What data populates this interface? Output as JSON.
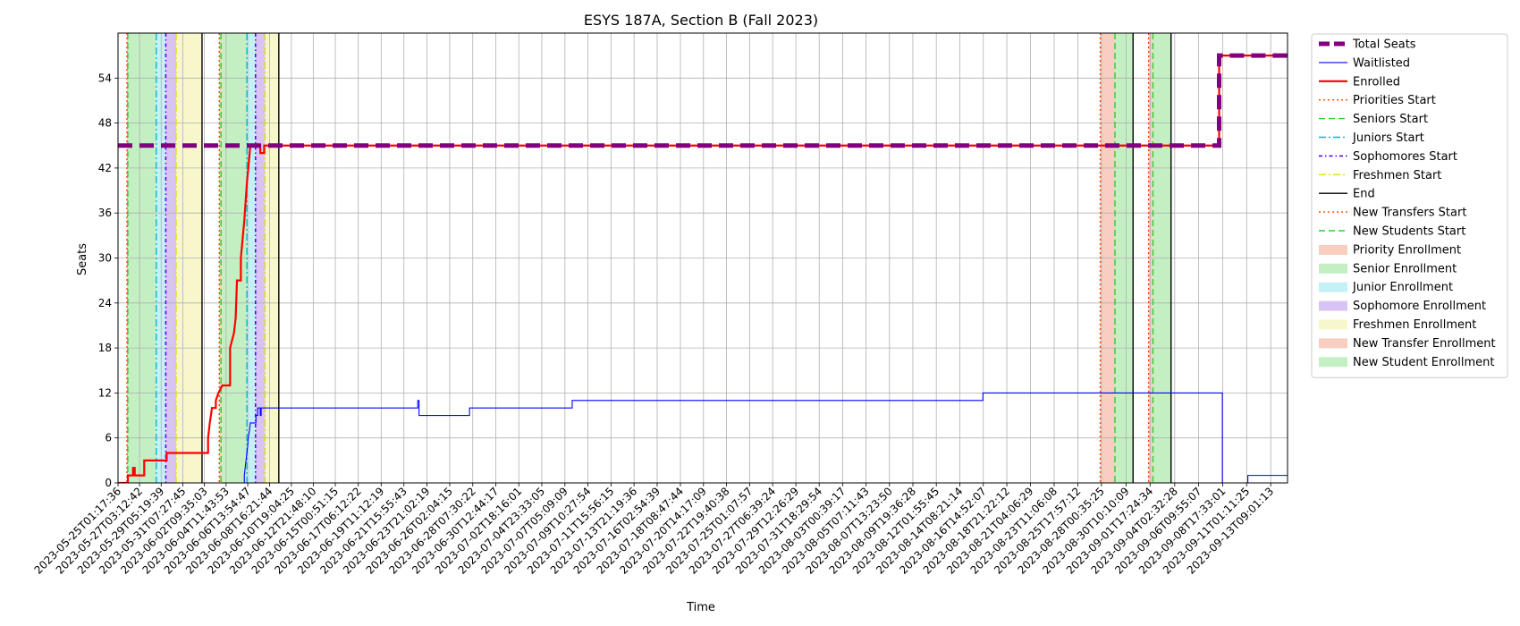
{
  "chart_data": {
    "type": "line",
    "title": "ESYS 187A, Section B (Fall 2023)",
    "xlabel": "Time",
    "ylabel": "Seats",
    "grid": true,
    "legend_position": "outside-right",
    "xlim": [
      "2023-05-25T01:17:36",
      "2023-09-15T00:00:00"
    ],
    "ylim": [
      0,
      60
    ],
    "yticks": [
      0,
      6,
      12,
      18,
      24,
      30,
      36,
      42,
      48,
      54
    ],
    "xticks": [
      "2023-05-25T01:17:36",
      "2023-05-27T03:12:42",
      "2023-05-29T05:19:39",
      "2023-05-31T07:27:45",
      "2023-06-02T09:35:03",
      "2023-06-04T11:43:53",
      "2023-06-06T13:54:47",
      "2023-06-08T16:21:44",
      "2023-06-10T19:04:25",
      "2023-06-12T21:48:10",
      "2023-06-15T00:51:15",
      "2023-06-17T06:12:22",
      "2023-06-19T11:12:19",
      "2023-06-21T15:55:43",
      "2023-06-23T21:02:19",
      "2023-06-26T02:04:15",
      "2023-06-28T07:30:22",
      "2023-06-30T12:44:17",
      "2023-07-02T18:16:01",
      "2023-07-04T23:33:05",
      "2023-07-07T05:09:09",
      "2023-07-09T10:27:54",
      "2023-07-11T15:56:15",
      "2023-07-13T21:19:36",
      "2023-07-16T02:54:39",
      "2023-07-18T08:47:44",
      "2023-07-20T14:17:09",
      "2023-07-22T19:40:38",
      "2023-07-25T01:07:57",
      "2023-07-27T06:39:24",
      "2023-07-29T12:26:29",
      "2023-07-31T18:29:54",
      "2023-08-03T00:39:17",
      "2023-08-05T07:11:43",
      "2023-08-07T13:23:50",
      "2023-08-09T19:36:28",
      "2023-08-12T01:55:45",
      "2023-08-14T08:21:14",
      "2023-08-16T14:52:07",
      "2023-08-18T21:22:12",
      "2023-08-21T04:06:29",
      "2023-08-23T11:06:08",
      "2023-08-25T17:57:12",
      "2023-08-28T00:35:25",
      "2023-08-30T10:10:09",
      "2023-09-01T17:24:34",
      "2023-09-04T02:32:28",
      "2023-09-06T09:55:07",
      "2023-09-08T17:33:01",
      "2023-09-11T01:11:25",
      "2023-09-13T09:01:13"
    ],
    "series": [
      {
        "name": "Total Seats",
        "color": "#800080",
        "style": "dashed-thick",
        "points": [
          [
            "2023-05-25T01:17:36",
            45
          ],
          [
            "2023-09-08T09:30:00",
            45
          ],
          [
            "2023-09-08T09:30:00",
            57
          ],
          [
            "2023-09-15T00:00:00",
            57
          ]
        ]
      },
      {
        "name": "Waitlisted",
        "color": "#0000ff",
        "style": "solid-thin",
        "points": [
          [
            "2023-05-25T01:17:36",
            0
          ],
          [
            "2023-06-06T06:00:00",
            0
          ],
          [
            "2023-06-06T06:00:00",
            1
          ],
          [
            "2023-06-06T08:00:00",
            2
          ],
          [
            "2023-06-06T10:00:00",
            3
          ],
          [
            "2023-06-06T12:00:00",
            4
          ],
          [
            "2023-06-06T14:00:00",
            5
          ],
          [
            "2023-06-06T15:00:00",
            6
          ],
          [
            "2023-06-06T18:00:00",
            7
          ],
          [
            "2023-06-06T20:00:00",
            8
          ],
          [
            "2023-06-07T09:00:00",
            8
          ],
          [
            "2023-06-07T09:00:00",
            9
          ],
          [
            "2023-06-07T13:00:00",
            9
          ],
          [
            "2023-06-07T13:00:00",
            10
          ],
          [
            "2023-06-07T19:00:00",
            10
          ],
          [
            "2023-06-07T19:00:00",
            9
          ],
          [
            "2023-06-07T21:00:00",
            9
          ],
          [
            "2023-06-07T21:00:00",
            10
          ],
          [
            "2023-06-23T00:00:00",
            10
          ],
          [
            "2023-06-23T00:00:00",
            11
          ],
          [
            "2023-06-23T03:00:00",
            11
          ],
          [
            "2023-06-23T03:00:00",
            9
          ],
          [
            "2023-06-28T00:00:00",
            9
          ],
          [
            "2023-06-28T00:00:00",
            10
          ],
          [
            "2023-07-07T22:00:00",
            10
          ],
          [
            "2023-07-07T22:00:00",
            11
          ],
          [
            "2023-08-16T14:00:00",
            11
          ],
          [
            "2023-08-16T14:00:00",
            12
          ],
          [
            "2023-09-08T17:00:00",
            12
          ],
          [
            "2023-09-08T17:00:00",
            0
          ],
          [
            "2023-09-11T04:00:00",
            0
          ],
          [
            "2023-09-11T04:00:00",
            1
          ],
          [
            "2023-09-15T00:00:00",
            1
          ]
        ]
      },
      {
        "name": "Enrolled",
        "color": "#ff0000",
        "style": "solid-thick",
        "points": [
          [
            "2023-05-25T01:17:36",
            0
          ],
          [
            "2023-05-26T00:00:00",
            0
          ],
          [
            "2023-05-26T00:00:00",
            1
          ],
          [
            "2023-05-26T12:00:00",
            1
          ],
          [
            "2023-05-26T12:00:00",
            2
          ],
          [
            "2023-05-26T16:00:00",
            2
          ],
          [
            "2023-05-26T16:00:00",
            1
          ],
          [
            "2023-05-27T14:00:00",
            1
          ],
          [
            "2023-05-27T14:00:00",
            3
          ],
          [
            "2023-05-29T18:00:00",
            3
          ],
          [
            "2023-05-29T18:00:00",
            4
          ],
          [
            "2023-06-02T18:00:00",
            4
          ],
          [
            "2023-06-02T18:00:00",
            6
          ],
          [
            "2023-06-02T22:00:00",
            8
          ],
          [
            "2023-06-03T03:00:00",
            10
          ],
          [
            "2023-06-03T12:00:00",
            10
          ],
          [
            "2023-06-03T12:00:00",
            11
          ],
          [
            "2023-06-03T18:00:00",
            12
          ],
          [
            "2023-06-04T03:00:00",
            13
          ],
          [
            "2023-06-04T21:00:00",
            13
          ],
          [
            "2023-06-04T21:00:00",
            18
          ],
          [
            "2023-06-05T06:00:00",
            20
          ],
          [
            "2023-06-05T10:00:00",
            22
          ],
          [
            "2023-06-05T13:00:00",
            27
          ],
          [
            "2023-06-05T22:00:00",
            27
          ],
          [
            "2023-06-05T22:00:00",
            30
          ],
          [
            "2023-06-06T06:00:00",
            35
          ],
          [
            "2023-06-06T12:00:00",
            40
          ],
          [
            "2023-06-06T20:00:00",
            45
          ],
          [
            "2023-06-07T19:00:00",
            45
          ],
          [
            "2023-06-07T19:00:00",
            44
          ],
          [
            "2023-06-08T04:00:00",
            44
          ],
          [
            "2023-06-08T04:00:00",
            45
          ],
          [
            "2023-09-08T09:30:00",
            45
          ],
          [
            "2023-09-08T09:30:00",
            57
          ],
          [
            "2023-09-15T00:00:00",
            57
          ]
        ]
      }
    ],
    "vlines": [
      {
        "series": "Priorities Start",
        "color": "#ff4500",
        "style": "dotted",
        "at": [
          "2023-05-25T22:00:00",
          "2023-06-03T20:00:00"
        ]
      },
      {
        "series": "Seniors Start",
        "color": "#32cd32",
        "style": "dashed",
        "at": [
          "2023-05-26T00:00:00",
          "2023-06-04T00:00:00"
        ]
      },
      {
        "series": "Juniors Start",
        "color": "#00bcd4",
        "style": "dashdot",
        "at": [
          "2023-05-28T18:00:00",
          "2023-06-06T12:00:00"
        ]
      },
      {
        "series": "Sophomores Start",
        "color": "#5a00ff",
        "style": "dashdot-dense",
        "at": [
          "2023-05-29T16:00:00",
          "2023-06-07T08:00:00"
        ]
      },
      {
        "series": "Freshmen Start",
        "color": "#e0e000",
        "style": "dashdot",
        "at": [
          "2023-05-30T16:00:00",
          "2023-06-08T06:00:00"
        ]
      },
      {
        "series": "End",
        "color": "#000000",
        "style": "solid",
        "at": [
          "2023-06-02T04:00:00",
          "2023-06-09T14:00:00"
        ]
      },
      {
        "series": "New Transfers Start",
        "color": "#ff4500",
        "style": "dotted",
        "at": [
          "2023-08-27T22:00:00",
          "2023-09-01T14:00:00"
        ]
      },
      {
        "series": "New Students Start",
        "color": "#32cd32",
        "style": "dashed",
        "at": [
          "2023-08-29T08:00:00",
          "2023-09-02T00:00:00"
        ]
      },
      {
        "series": "New Transfers End",
        "color": "#000000",
        "style": "solid",
        "at": [
          "2023-08-31T02:00:00",
          "2023-09-03T18:00:00"
        ]
      }
    ],
    "bands": [
      {
        "series": "Priority Enrollment",
        "color": "#f6c2b0",
        "from": "2023-05-25T22:00:00",
        "to": "2023-05-26T00:00:00"
      },
      {
        "series": "Senior Enrollment",
        "color": "#b4ebb4",
        "from": "2023-05-26T00:00:00",
        "to": "2023-05-28T18:00:00"
      },
      {
        "series": "Junior Enrollment",
        "color": "#b5eef2",
        "from": "2023-05-28T18:00:00",
        "to": "2023-05-29T16:00:00"
      },
      {
        "series": "Sophomore Enrollment",
        "color": "#cdb5f2",
        "from": "2023-05-29T16:00:00",
        "to": "2023-05-30T16:00:00"
      },
      {
        "series": "Freshmen Enrollment",
        "color": "#f5f5be",
        "from": "2023-05-30T16:00:00",
        "to": "2023-06-02T04:00:00"
      },
      {
        "series": "Priority Enrollment",
        "color": "#f6c2b0",
        "from": "2023-06-03T20:00:00",
        "to": "2023-06-04T00:00:00"
      },
      {
        "series": "Senior Enrollment",
        "color": "#b4ebb4",
        "from": "2023-06-04T00:00:00",
        "to": "2023-06-06T12:00:00"
      },
      {
        "series": "Junior Enrollment",
        "color": "#b5eef2",
        "from": "2023-06-06T12:00:00",
        "to": "2023-06-07T08:00:00"
      },
      {
        "series": "Sophomore Enrollment",
        "color": "#cdb5f2",
        "from": "2023-06-07T08:00:00",
        "to": "2023-06-08T06:00:00"
      },
      {
        "series": "Freshmen Enrollment",
        "color": "#f5f5be",
        "from": "2023-06-08T06:00:00",
        "to": "2023-06-09T14:00:00"
      },
      {
        "series": "New Transfer Enrollment",
        "color": "#f6c2b0",
        "from": "2023-08-27T22:00:00",
        "to": "2023-08-29T08:00:00"
      },
      {
        "series": "New Student Enrollment",
        "color": "#b4ebb4",
        "from": "2023-08-29T08:00:00",
        "to": "2023-08-31T02:00:00"
      },
      {
        "series": "New Transfer Enrollment",
        "color": "#f6c2b0",
        "from": "2023-09-01T14:00:00",
        "to": "2023-09-02T00:00:00"
      },
      {
        "series": "New Student Enrollment",
        "color": "#b4ebb4",
        "from": "2023-09-02T00:00:00",
        "to": "2023-09-03T18:00:00"
      }
    ],
    "legend": [
      {
        "label": "Total Seats",
        "kind": "line",
        "color": "#800080",
        "style": "dashed-thick"
      },
      {
        "label": "Waitlisted",
        "kind": "line",
        "color": "#0000ff",
        "style": "solid-thin"
      },
      {
        "label": "Enrolled",
        "kind": "line",
        "color": "#ff0000",
        "style": "solid-thick"
      },
      {
        "label": "Priorities Start",
        "kind": "line",
        "color": "#ff4500",
        "style": "dotted"
      },
      {
        "label": "Seniors Start",
        "kind": "line",
        "color": "#32cd32",
        "style": "dashed"
      },
      {
        "label": "Juniors Start",
        "kind": "line",
        "color": "#00bcd4",
        "style": "dashdot"
      },
      {
        "label": "Sophomores Start",
        "kind": "line",
        "color": "#5a00ff",
        "style": "dashdot-dense"
      },
      {
        "label": "Freshmen Start",
        "kind": "line",
        "color": "#e0e000",
        "style": "dashdot"
      },
      {
        "label": "End",
        "kind": "line",
        "color": "#000000",
        "style": "solid"
      },
      {
        "label": "New Transfers Start",
        "kind": "line",
        "color": "#ff4500",
        "style": "dotted"
      },
      {
        "label": "New Students Start",
        "kind": "line",
        "color": "#32cd32",
        "style": "dashed"
      },
      {
        "label": "Priority Enrollment",
        "kind": "patch",
        "color": "#f6c2b0"
      },
      {
        "label": "Senior Enrollment",
        "kind": "patch",
        "color": "#b4ebb4"
      },
      {
        "label": "Junior Enrollment",
        "kind": "patch",
        "color": "#b5eef2"
      },
      {
        "label": "Sophomore Enrollment",
        "kind": "patch",
        "color": "#cdb5f2"
      },
      {
        "label": "Freshmen Enrollment",
        "kind": "patch",
        "color": "#f5f5be"
      },
      {
        "label": "New Transfer Enrollment",
        "kind": "patch",
        "color": "#f6c2b0"
      },
      {
        "label": "New Student Enrollment",
        "kind": "patch",
        "color": "#b4ebb4"
      }
    ]
  }
}
